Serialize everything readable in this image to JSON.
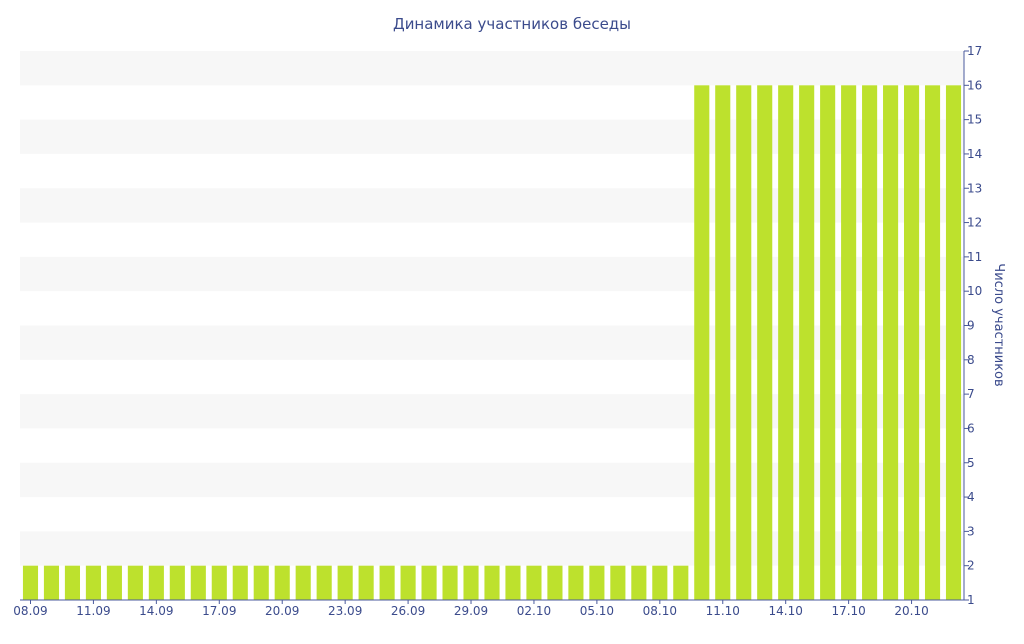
{
  "chart_data": {
    "type": "bar",
    "title": "Динамика участников беседы",
    "xlabel": "",
    "ylabel": "Число участников",
    "ylim": [
      1,
      17
    ],
    "yticks": [
      1,
      2,
      3,
      4,
      5,
      6,
      7,
      8,
      9,
      10,
      11,
      12,
      13,
      14,
      15,
      16,
      17
    ],
    "y_axis_side": "right",
    "grid": "horizontal alternating bands",
    "x_tick_labels": [
      "08.09",
      "11.09",
      "14.09",
      "17.09",
      "20.09",
      "23.09",
      "26.09",
      "29.09",
      "02.10",
      "05.10",
      "08.10",
      "11.10",
      "14.10",
      "17.10",
      "20.10"
    ],
    "categories": [
      "08.09",
      "09.09",
      "10.09",
      "11.09",
      "12.09",
      "13.09",
      "14.09",
      "15.09",
      "16.09",
      "17.09",
      "18.09",
      "19.09",
      "20.09",
      "21.09",
      "22.09",
      "23.09",
      "24.09",
      "25.09",
      "26.09",
      "27.09",
      "28.09",
      "29.09",
      "30.09",
      "01.10",
      "02.10",
      "03.10",
      "04.10",
      "05.10",
      "06.10",
      "07.10",
      "08.10",
      "09.10",
      "10.10",
      "11.10",
      "12.10",
      "13.10",
      "14.10",
      "15.10",
      "16.10",
      "17.10",
      "18.10",
      "19.10",
      "20.10",
      "21.10",
      "22.10"
    ],
    "values": [
      2,
      2,
      2,
      2,
      2,
      2,
      2,
      2,
      2,
      2,
      2,
      2,
      2,
      2,
      2,
      2,
      2,
      2,
      2,
      2,
      2,
      2,
      2,
      2,
      2,
      2,
      2,
      2,
      2,
      2,
      2,
      2,
      16,
      16,
      16,
      16,
      16,
      16,
      16,
      16,
      16,
      16,
      16,
      16,
      16
    ],
    "colors": {
      "bar": "#bde12d",
      "axis": "#4a5a9c",
      "text": "#3b4b8c",
      "band": "#f7f7f7"
    }
  }
}
